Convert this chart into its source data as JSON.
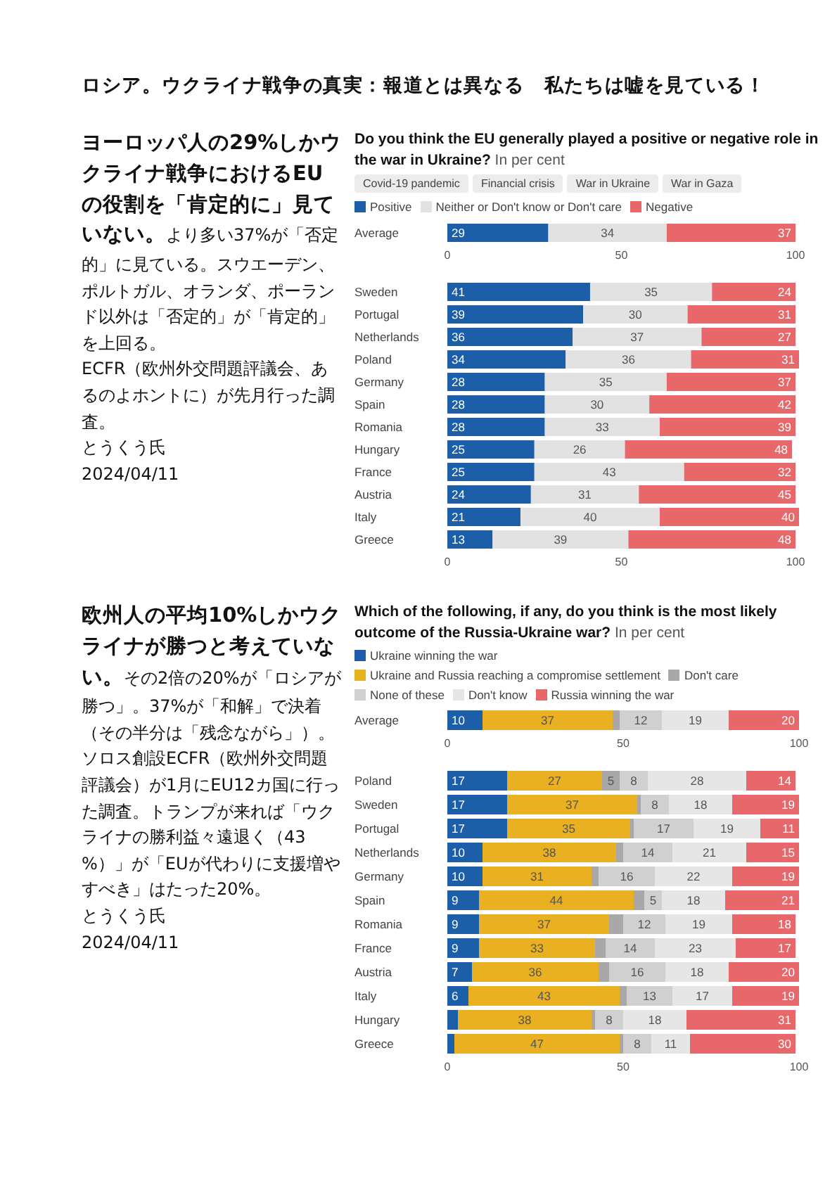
{
  "chart_data": [
    {
      "type": "other",
      "title": "ロシア。ウクライナ戦争の真実：報道とは異なる　私たちは嘘を見ている！"
    },
    {
      "type": "other",
      "title": "ヨーロッパ人の29%しかウクライナ戦争におけるEUの役割を「肯定的に」見ていない。",
      "annotations": [
        "より多い37%が「否定的」に見ている。スウエーデン、ポルトガル、オランダ、ポーランド以外は「否定的」が「肯定的」を上回る。",
        "ECFR（欧州外交問題評議会、あるのよホントに）が先月行った調査。",
        "とうくう氏",
        "2024/04/11"
      ]
    },
    {
      "type": "bar",
      "orientation": "horizontal",
      "stacked": true,
      "title": "Do you think the EU generally played a positive or negative role in the war in Ukraine?",
      "subtitle": "In per cent",
      "annotations": [
        "Covid-19 pandemic",
        "Financial crisis",
        "War in Ukraine",
        "War in Gaza"
      ],
      "categories": [
        "Average",
        "Sweden",
        "Portugal",
        "Netherlands",
        "Poland",
        "Germany",
        "Spain",
        "Romania",
        "Hungary",
        "France",
        "Austria",
        "Italy",
        "Greece"
      ],
      "series": [
        {
          "name": "Positive",
          "color": "#1c5fa8",
          "values": [
            29,
            41,
            39,
            36,
            34,
            28,
            28,
            28,
            25,
            25,
            24,
            21,
            13
          ]
        },
        {
          "name": "Neither or Don't know or Don't care",
          "color": "#e2e2e2",
          "values": [
            34,
            35,
            30,
            37,
            36,
            35,
            30,
            33,
            26,
            43,
            31,
            40,
            39
          ]
        },
        {
          "name": "Negative",
          "color": "#e8676b",
          "values": [
            37,
            24,
            31,
            27,
            31,
            37,
            42,
            39,
            48,
            32,
            45,
            40,
            48
          ]
        }
      ],
      "xlim": [
        0,
        101
      ],
      "xticks": [
        0,
        50,
        100
      ],
      "x2lim": [
        0,
        101
      ],
      "x2ticks": [
        0,
        50,
        100
      ],
      "legend": "top",
      "data_labels": true
    },
    {
      "type": "other",
      "title": "欧州人の平均10%しかウクライナが勝つと考えていない。",
      "annotations": [
        "その2倍の20%が「ロシアが勝つ」。37%が「和解」で決着（その半分は「残念ながら」）。ソロス創設ECFR（欧州外交問題評議会）が1月にEU12カ国に行った調査。トランプが来れば「ウクライナの勝利益々遠退く（43 %）」が「EUが代わりに支援増やすべき」はたった20%。",
        "とうくう氏",
        "2024/04/11"
      ]
    },
    {
      "type": "bar",
      "orientation": "horizontal",
      "stacked": true,
      "title": "Which of the following, if any, do you think is the most likely outcome of the Russia-Ukraine war?",
      "subtitle": "In per cent",
      "categories": [
        "Average",
        "Poland",
        "Sweden",
        "Portugal",
        "Netherlands",
        "Germany",
        "Spain",
        "Romania",
        "France",
        "Austria",
        "Italy",
        "Hungary",
        "Greece"
      ],
      "series": [
        {
          "name": "Ukraine winning the war",
          "color": "#1c5fa8",
          "values": [
            10,
            17,
            17,
            17,
            10,
            10,
            9,
            9,
            9,
            7,
            6,
            3,
            2
          ],
          "value_labels": [
            "10",
            "17",
            "17",
            "17",
            "10",
            "10",
            "9",
            "9",
            "9",
            "7",
            "6",
            null,
            null
          ]
        },
        {
          "name": "Ukraine and Russia reaching a compromise settlement",
          "color": "#e9b021",
          "values": [
            37,
            27,
            37,
            35,
            38,
            31,
            44,
            37,
            33,
            36,
            43,
            38,
            47
          ],
          "value_labels": [
            "37",
            "27",
            "37",
            "35",
            "38",
            "31",
            "44",
            "37",
            "33",
            "36",
            "43",
            "38",
            "47"
          ]
        },
        {
          "name": "Don't care",
          "color": "#a8a8a8",
          "values": [
            2,
            5,
            1,
            1,
            2,
            2,
            3,
            4,
            3,
            3,
            2,
            1,
            1
          ],
          "value_labels": [
            null,
            "5",
            null,
            null,
            null,
            null,
            null,
            null,
            null,
            null,
            null,
            null,
            null
          ]
        },
        {
          "name": "None of these",
          "color": "#d0d0d0",
          "values": [
            12,
            8,
            8,
            17,
            14,
            16,
            5,
            12,
            14,
            16,
            13,
            8,
            8
          ],
          "value_labels": [
            "12",
            "8",
            "8",
            "17",
            "14",
            "16",
            "5",
            "12",
            "14",
            "16",
            "13",
            "8",
            "8"
          ]
        },
        {
          "name": "Don't know",
          "color": "#e6e6e6",
          "values": [
            19,
            28,
            18,
            19,
            21,
            22,
            18,
            19,
            23,
            18,
            17,
            18,
            11
          ],
          "value_labels": [
            "19",
            "28",
            "18",
            "19",
            "21",
            "22",
            "18",
            "19",
            "23",
            "18",
            "17",
            "18",
            "11"
          ]
        },
        {
          "name": "Russia winning the war",
          "color": "#e8676b",
          "values": [
            20,
            14,
            19,
            11,
            15,
            19,
            21,
            18,
            17,
            20,
            19,
            31,
            30
          ],
          "value_labels": [
            "20",
            "14",
            "19",
            "11",
            "15",
            "19",
            "21",
            "18",
            "17",
            "20",
            "19",
            "31",
            "30"
          ]
        }
      ],
      "xlim": [
        0,
        100
      ],
      "xticks": [
        0,
        50,
        100
      ],
      "x2lim": [
        0,
        100
      ],
      "x2ticks": [
        0,
        50,
        100
      ],
      "legend": "top"
    }
  ]
}
